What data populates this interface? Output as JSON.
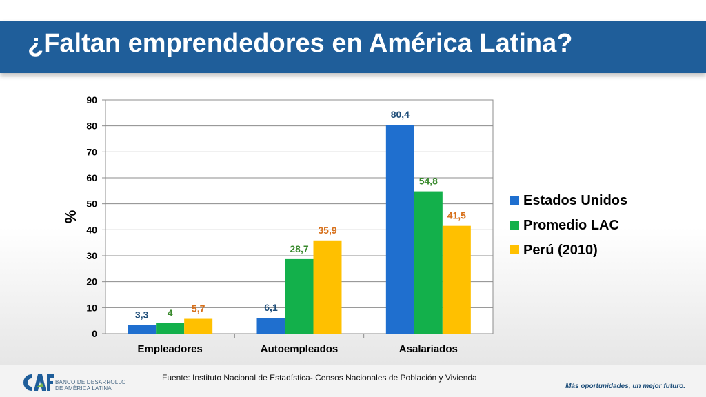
{
  "slide": {
    "title": "¿Faltan emprendedores en América Latina?",
    "source": "Fuente: Instituto Nacional de Estadística- Censos Nacionales de Población y Vivienda",
    "slogan": "Más oportunidades, un mejor futuro.",
    "logo_text": "CAF",
    "org_line1": "BANCO DE DESARROLLO",
    "org_line2": "DE AMÉRICA LATINA",
    "brand_color": "#1f5e9a"
  },
  "chart_data": {
    "type": "bar",
    "title": "",
    "xlabel": "",
    "ylabel": "%",
    "ylim": [
      0,
      90
    ],
    "yticks": [
      0,
      10,
      20,
      30,
      40,
      50,
      60,
      70,
      80,
      90
    ],
    "grid": true,
    "legend_position": "right",
    "categories": [
      "Empleadores",
      "Autoempleados",
      "Asalariados"
    ],
    "series": [
      {
        "name": "Estados Unidos",
        "color": "#1f6fcf",
        "label_color": "#1f4e79",
        "values": [
          3.3,
          6.1,
          80.4
        ],
        "labels": [
          "3,3",
          "6,1",
          "80,4"
        ]
      },
      {
        "name": "Promedio LAC",
        "color": "#13b04b",
        "label_color": "#3a8a2e",
        "values": [
          4,
          28.7,
          54.8
        ],
        "labels": [
          "4",
          "28,7",
          "54,8"
        ]
      },
      {
        "name": "Perú (2010)",
        "color": "#ffc000",
        "label_color": "#d7701b",
        "values": [
          5.7,
          35.9,
          41.5
        ],
        "labels": [
          "5,7",
          "35,9",
          "41,5"
        ]
      }
    ]
  }
}
